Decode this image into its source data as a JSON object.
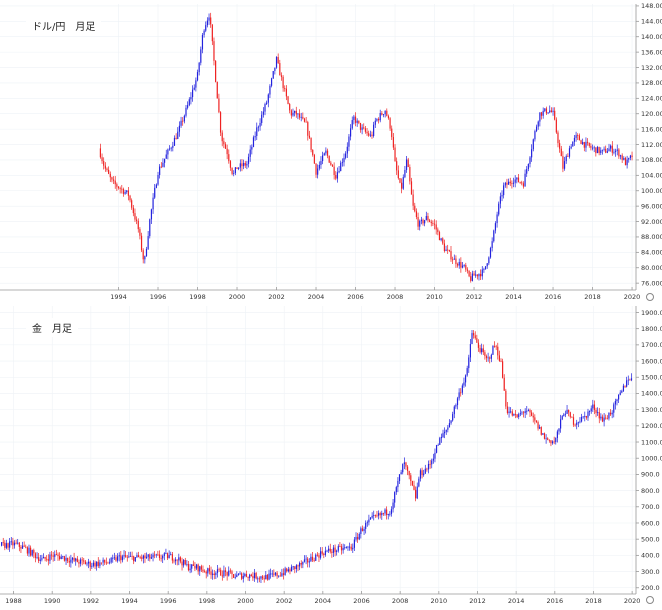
{
  "colors": {
    "up": "#2222dd",
    "down": "#ee2222",
    "grid": "#eef2f6",
    "axis": "#999999"
  },
  "icons": [
    "settings-gear-icon",
    "settings-gear-icon"
  ],
  "chart_data": [
    {
      "type": "candlestick",
      "title": "ドル/円　月足",
      "xlim": [
        1988.0,
        2020.2
      ],
      "ylim": [
        75.0,
        148.5
      ],
      "x_ticks": [
        1994,
        1996,
        1998,
        2000,
        2002,
        2004,
        2006,
        2008,
        2010,
        2012,
        2014,
        2016,
        2018,
        2020
      ],
      "y_ticks": [
        76,
        80,
        84,
        88,
        92,
        96,
        100,
        104,
        108,
        112,
        116,
        120,
        124,
        128,
        132,
        136,
        140,
        144,
        148
      ],
      "y_tick_labels": [
        "76.000",
        "80.000",
        "84.000",
        "88.000",
        "92.000",
        "96.000",
        "100.000",
        "104.000",
        "108.000",
        "112.000",
        "116.000",
        "120.000",
        "124.000",
        "128.000",
        "132.000",
        "136.000",
        "140.000",
        "144.000",
        "148.000"
      ],
      "grid": true,
      "price_series": {
        "x": [
          1993.0,
          1993.3,
          1993.7,
          1994.0,
          1994.5,
          1995.0,
          1995.3,
          1995.6,
          1996.0,
          1996.5,
          1997.0,
          1997.5,
          1998.0,
          1998.3,
          1998.6,
          1998.9,
          1999.2,
          1999.5,
          1999.8,
          2000.0,
          2000.5,
          2001.0,
          2001.5,
          2002.0,
          2002.3,
          2002.7,
          2003.0,
          2003.5,
          2003.8,
          2004.0,
          2004.5,
          2005.0,
          2005.5,
          2005.9,
          2006.3,
          2006.8,
          2007.0,
          2007.5,
          2007.8,
          2008.0,
          2008.3,
          2008.6,
          2008.9,
          2009.2,
          2009.6,
          2010.0,
          2010.5,
          2011.0,
          2011.5,
          2011.8,
          2012.0,
          2012.5,
          2012.9,
          2013.2,
          2013.5,
          2014.0,
          2014.5,
          2014.9,
          2015.3,
          2015.8,
          2016.0,
          2016.5,
          2016.9,
          2017.2,
          2017.6,
          2018.0,
          2018.5,
          2018.9,
          2019.3,
          2019.7,
          2020.0
        ],
        "y": [
          111,
          106,
          102,
          101,
          99,
          90,
          81,
          93,
          105,
          110,
          115,
          122,
          130,
          142,
          146,
          130,
          114,
          110,
          104,
          106,
          107,
          116,
          123,
          134,
          128,
          120,
          120,
          117,
          110,
          105,
          110,
          104,
          110,
          119,
          116,
          114,
          118,
          121,
          116,
          107,
          100,
          108,
          96,
          91,
          93,
          91,
          85,
          82,
          80,
          77,
          78,
          79,
          86,
          95,
          101,
          103,
          102,
          111,
          120,
          121,
          120,
          106,
          112,
          114,
          112,
          111,
          110,
          111,
          110,
          107,
          109
        ]
      }
    },
    {
      "type": "candlestick",
      "title": "金　月足",
      "xlim": [
        1987.3,
        2020.2
      ],
      "ylim": [
        180,
        1940
      ],
      "x_ticks": [
        1988,
        1990,
        1992,
        1994,
        1996,
        1998,
        2000,
        2002,
        2004,
        2006,
        2008,
        2010,
        2012,
        2014,
        2016,
        2018,
        2020
      ],
      "y_ticks": [
        200,
        300,
        400,
        500,
        600,
        700,
        800,
        900,
        1000,
        1100,
        1200,
        1300,
        1400,
        1500,
        1600,
        1700,
        1800,
        1900
      ],
      "y_tick_labels": [
        "200.0",
        "300.0",
        "400.0",
        "500.0",
        "600.0",
        "700.0",
        "800.0",
        "900.0",
        "1000.0",
        "1100.0",
        "1200.0",
        "1300.0",
        "1400.0",
        "1500.0",
        "1600.0",
        "1700.0",
        "1800.0",
        "1900.0"
      ],
      "grid": true,
      "price_series": {
        "x": [
          1987.3,
          1988.0,
          1988.5,
          1989.0,
          1989.5,
          1990.0,
          1990.5,
          1991.0,
          1992.0,
          1993.0,
          1993.5,
          1994.0,
          1995.0,
          1996.0,
          1996.5,
          1997.0,
          1997.5,
          1998.0,
          1999.0,
          1999.5,
          2000.0,
          2001.0,
          2001.5,
          2002.0,
          2003.0,
          2004.0,
          2005.0,
          2005.5,
          2006.0,
          2006.5,
          2007.0,
          2007.5,
          2008.0,
          2008.2,
          2008.8,
          2009.0,
          2009.5,
          2010.0,
          2010.5,
          2011.0,
          2011.5,
          2011.7,
          2012.0,
          2012.5,
          2012.9,
          2013.2,
          2013.5,
          2014.0,
          2014.5,
          2015.0,
          2015.5,
          2016.0,
          2016.5,
          2017.0,
          2017.5,
          2018.0,
          2018.5,
          2019.0,
          2019.5,
          2019.8,
          2020.0
        ],
        "y": [
          460,
          470,
          450,
          410,
          370,
          400,
          390,
          370,
          345,
          360,
          390,
          385,
          385,
          395,
          380,
          330,
          325,
          300,
          290,
          270,
          280,
          265,
          275,
          295,
          350,
          420,
          440,
          450,
          560,
          620,
          650,
          680,
          900,
          970,
          760,
          900,
          950,
          1100,
          1200,
          1380,
          1550,
          1780,
          1700,
          1600,
          1700,
          1600,
          1300,
          1250,
          1300,
          1220,
          1120,
          1100,
          1300,
          1220,
          1250,
          1320,
          1230,
          1300,
          1420,
          1500,
          1480
        ]
      }
    }
  ]
}
